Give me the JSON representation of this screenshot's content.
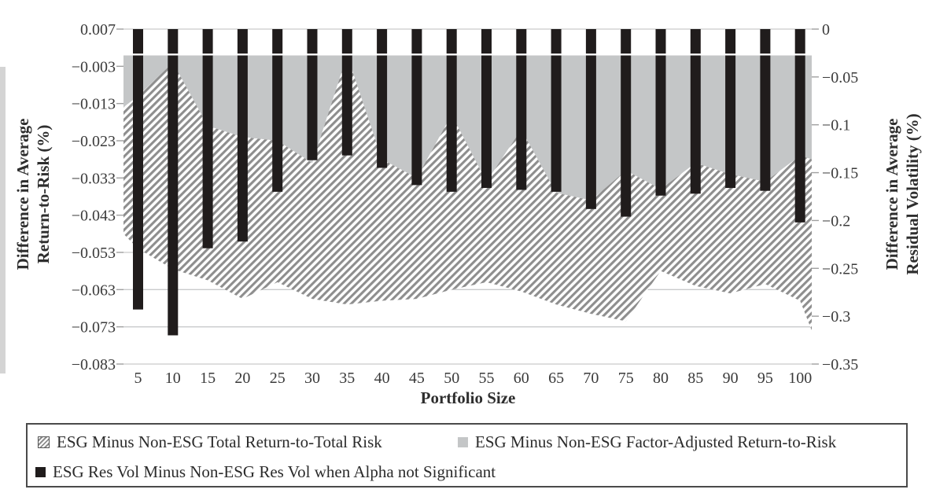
{
  "figure": {
    "x_axis": {
      "title": "Portfolio Size",
      "tick_labels": [
        "5",
        "10",
        "15",
        "20",
        "25",
        "30",
        "35",
        "40",
        "45",
        "50",
        "55",
        "60",
        "65",
        "70",
        "75",
        "80",
        "85",
        "90",
        "95",
        "100"
      ]
    },
    "left_axis": {
      "title_lines": [
        "Difference in Average",
        "Return-to-Risk (%)"
      ],
      "tick_labels": [
        "0.007",
        "−0.003",
        "−0.013",
        "−0.023",
        "−0.033",
        "−0.043",
        "−0.053",
        "−0.063",
        "−0.073",
        "−0.083"
      ]
    },
    "right_axis": {
      "title_lines": [
        "Difference in Average",
        "Residual Volatility (%)"
      ],
      "tick_labels": [
        "0",
        "−0.05",
        "−0.1",
        "−0.15",
        "−0.2",
        "−0.25",
        "−0.3",
        "−0.35"
      ]
    },
    "legend": {
      "items": [
        {
          "label": "ESG Minus Non-ESG Total Return-to-Total Risk",
          "swatch": "hatch"
        },
        {
          "label": "ESG Minus Non-ESG Factor-Adjusted Return-to-Risk",
          "swatch": "gray"
        },
        {
          "label": "ESG Res Vol Minus Non-ESG Res Vol when Alpha not Significant",
          "swatch": "black"
        }
      ]
    },
    "colors": {
      "bar": "#201c1c",
      "area_gray": "#c4c6c7",
      "hatch_stripe": "#8e8e8e",
      "gridline": "#c9cacb",
      "tick": "#a0a0a0",
      "text": "#3a3a3a"
    }
  },
  "chart_data": {
    "type": "combo (two overlaid area series on left axis + bar series on right axis)",
    "title": "",
    "xlabel": "Portfolio Size",
    "grid": true,
    "legend_position": "bottom",
    "categories": [
      5,
      10,
      15,
      20,
      25,
      30,
      35,
      40,
      45,
      50,
      55,
      60,
      65,
      70,
      75,
      80,
      85,
      90,
      95,
      100
    ],
    "left_axis": {
      "label": "Difference in Average Return-to-Risk (%)",
      "range": [
        -0.083,
        0.007
      ],
      "ticks": [
        0.007,
        -0.003,
        -0.013,
        -0.023,
        -0.033,
        -0.043,
        -0.053,
        -0.063,
        -0.073,
        -0.083
      ]
    },
    "right_axis": {
      "label": "Difference in Average Residual Volatility (%)",
      "range": [
        -0.35,
        0
      ],
      "ticks": [
        0,
        -0.05,
        -0.1,
        -0.15,
        -0.2,
        -0.25,
        -0.3,
        -0.35
      ]
    },
    "series": [
      {
        "name": "ESG Minus Non-ESG Total Return-to-Total Risk",
        "render": "area_hatched",
        "axis": "left",
        "values": [
          -0.052,
          -0.0575,
          -0.0605,
          -0.0655,
          -0.061,
          -0.0655,
          -0.067,
          -0.066,
          -0.0655,
          -0.063,
          -0.061,
          -0.0635,
          -0.067,
          -0.0695,
          -0.0715,
          -0.058,
          -0.062,
          -0.064,
          -0.0615,
          -0.066
        ],
        "edge_values": {
          "left": -0.048,
          "right": -0.074
        }
      },
      {
        "name": "ESG Minus Non-ESG Factor-Adjusted Return-to-Risk",
        "render": "area_gray",
        "axis": "left",
        "values": [
          -0.011,
          -0.002,
          -0.019,
          -0.022,
          -0.023,
          -0.029,
          0,
          -0.028,
          -0.033,
          -0.016,
          -0.034,
          -0.02,
          -0.037,
          -0.039,
          -0.031,
          -0.036,
          -0.029,
          -0.032,
          -0.034,
          -0.027
        ],
        "edge_values": {
          "left": -0.014,
          "right": -0.028
        }
      },
      {
        "name": "ESG Res Vol Minus Non-ESG Res Vol when Alpha not Significant",
        "render": "bar_black",
        "axis": "right",
        "values": [
          -0.293,
          -0.32,
          -0.229,
          -0.222,
          -0.17,
          -0.137,
          -0.132,
          -0.145,
          -0.163,
          -0.17,
          -0.166,
          -0.168,
          -0.17,
          -0.188,
          -0.196,
          -0.174,
          -0.172,
          -0.166,
          -0.169,
          -0.202
        ]
      }
    ]
  }
}
